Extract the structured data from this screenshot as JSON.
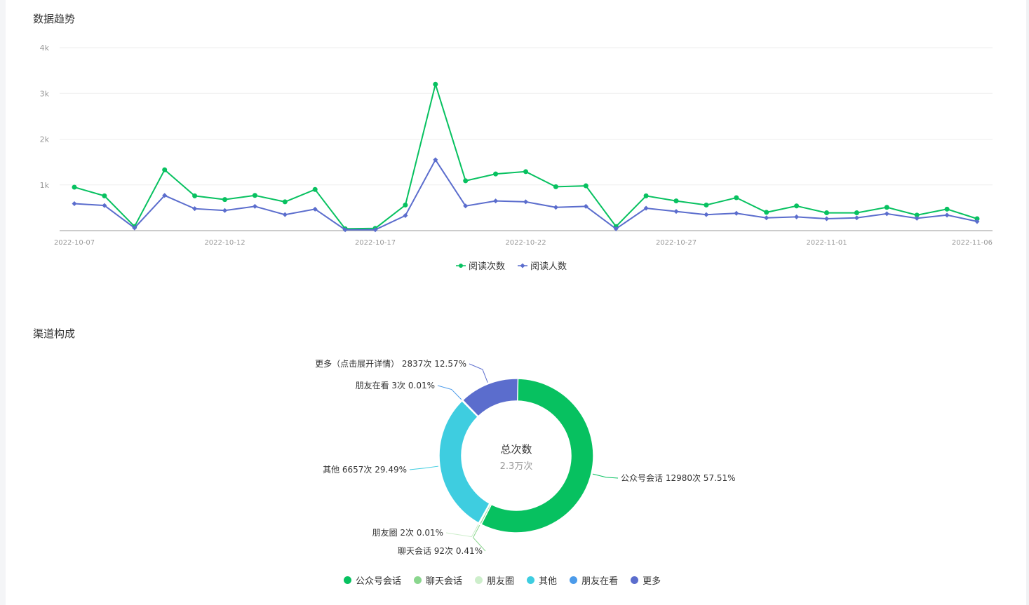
{
  "sections": {
    "trend_title": "数据趋势",
    "channel_title": "渠道构成"
  },
  "colors": {
    "reads": "#07c160",
    "readers": "#5b6dcd",
    "grid": "#eeeeee",
    "axis": "#999999"
  },
  "chart_data": [
    {
      "type": "line",
      "title": "",
      "x": [
        "2022-10-07",
        "2022-10-08",
        "2022-10-09",
        "2022-10-10",
        "2022-10-11",
        "2022-10-12",
        "2022-10-13",
        "2022-10-14",
        "2022-10-15",
        "2022-10-16",
        "2022-10-17",
        "2022-10-18",
        "2022-10-19",
        "2022-10-20",
        "2022-10-21",
        "2022-10-22",
        "2022-10-23",
        "2022-10-24",
        "2022-10-25",
        "2022-10-26",
        "2022-10-27",
        "2022-10-28",
        "2022-10-29",
        "2022-10-30",
        "2022-10-31",
        "2022-11-01",
        "2022-11-02",
        "2022-11-03",
        "2022-11-04",
        "2022-11-05",
        "2022-11-06"
      ],
      "x_tick_labels": [
        "2022-10-07",
        "2022-10-12",
        "2022-10-17",
        "2022-10-22",
        "2022-10-27",
        "2022-11-01",
        "2022-11-06"
      ],
      "y_tick_labels": [
        "1k",
        "2k",
        "3k",
        "4k"
      ],
      "ylim": [
        0,
        4000
      ],
      "grid": true,
      "legend_position": "bottom",
      "series": [
        {
          "name": "阅读次数",
          "color": "#07c160",
          "marker": "circle",
          "values": [
            950,
            760,
            90,
            1330,
            760,
            680,
            770,
            630,
            900,
            40,
            50,
            560,
            3200,
            1090,
            1240,
            1290,
            960,
            980,
            90,
            760,
            650,
            560,
            720,
            400,
            540,
            390,
            390,
            510,
            340,
            470,
            260
          ]
        },
        {
          "name": "阅读人数",
          "color": "#5b6dcd",
          "marker": "diamond",
          "values": [
            590,
            550,
            60,
            770,
            480,
            440,
            530,
            350,
            470,
            20,
            20,
            330,
            1550,
            540,
            650,
            630,
            510,
            530,
            40,
            490,
            420,
            350,
            380,
            280,
            300,
            260,
            280,
            370,
            270,
            340,
            200
          ]
        }
      ]
    },
    {
      "type": "pie",
      "title": "",
      "center_title": "总次数",
      "center_value": "2.3万次",
      "legend_position": "bottom",
      "slices": [
        {
          "name": "公众号会话",
          "value": 12980,
          "percent": 57.51,
          "color": "#07c160",
          "label": "公众号会话 12980次 57.51%"
        },
        {
          "name": "聊天会话",
          "value": 92,
          "percent": 0.41,
          "color": "#8ad68e",
          "label": "聊天会话 92次 0.41%"
        },
        {
          "name": "朋友圈",
          "value": 2,
          "percent": 0.01,
          "color": "#cdeecb",
          "label": "朋友圈 2次 0.01%"
        },
        {
          "name": "其他",
          "value": 6657,
          "percent": 29.49,
          "color": "#3ecde0",
          "label": "其他 6657次 29.49%"
        },
        {
          "name": "朋友在看",
          "value": 3,
          "percent": 0.01,
          "color": "#4c9bea",
          "label": "朋友在看 3次 0.01%"
        },
        {
          "name": "更多",
          "value": 2837,
          "percent": 12.57,
          "color": "#5b6dcd",
          "label": "更多（点击展开详情） 2837次 12.57%"
        }
      ]
    }
  ]
}
